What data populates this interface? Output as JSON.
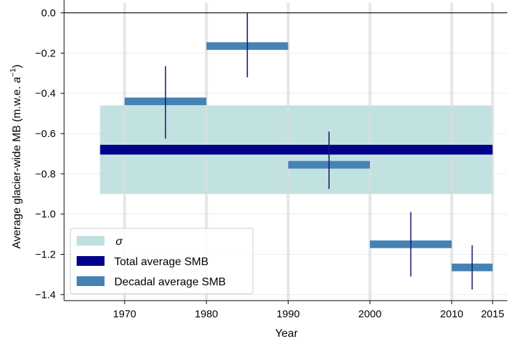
{
  "chart_data": {
    "type": "bar",
    "xlabel": "Year",
    "ylabel_main": "Average glacier-wide MB (m.w.e. ",
    "ylabel_unit_base": "a",
    "ylabel_unit_exp": "−1",
    "ylabel_close": ")",
    "xlim": [
      1962.6,
      2016.8
    ],
    "ylim": [
      -1.43,
      0.05
    ],
    "x_ticks": [
      {
        "value": 1970,
        "label": "1970"
      },
      {
        "value": 1980,
        "label": "1980"
      },
      {
        "value": 1990,
        "label": "1990"
      },
      {
        "value": 2000,
        "label": "2000"
      },
      {
        "value": 2010,
        "label": "2010"
      },
      {
        "value": 2015,
        "label": "2015"
      }
    ],
    "y_ticks": [
      {
        "value": 0.0,
        "label": "0.0"
      },
      {
        "value": -0.2,
        "label": "−0.2"
      },
      {
        "value": -0.4,
        "label": "−0.4"
      },
      {
        "value": -0.6,
        "label": "−0.6"
      },
      {
        "value": -0.8,
        "label": "−0.8"
      },
      {
        "value": -1.0,
        "label": "−1.0"
      },
      {
        "value": -1.2,
        "label": "−1.2"
      },
      {
        "value": -1.4,
        "label": "−1.4"
      }
    ],
    "vertical_lines": [
      1970,
      1980,
      1990,
      2000,
      2010,
      2015
    ],
    "zero_line": 0.0,
    "sigma_band": {
      "x_start": 1967,
      "x_end": 2015,
      "y_low": -0.9,
      "y_high": -0.46
    },
    "total_average": {
      "x_start": 1967,
      "x_end": 2015,
      "value": -0.68
    },
    "decadal": [
      {
        "start": 1970,
        "end": 1980,
        "value": -0.44,
        "err_low": -0.625,
        "err_high": -0.265
      },
      {
        "start": 1980,
        "end": 1990,
        "value": -0.165,
        "err_low": -0.32,
        "err_high": 0.0
      },
      {
        "start": 1990,
        "end": 2000,
        "value": -0.755,
        "err_low": -0.875,
        "err_high": -0.59
      },
      {
        "start": 2000,
        "end": 2010,
        "value": -1.15,
        "err_low": -1.31,
        "err_high": -0.99
      },
      {
        "start": 2010,
        "end": 2015,
        "value": -1.265,
        "err_low": -1.375,
        "err_high": -1.155
      }
    ],
    "legend": {
      "position": "lower-left",
      "entries": [
        {
          "label": "σ",
          "kind": "sigma",
          "color": "#bfe0e0"
        },
        {
          "label": "Total average SMB",
          "kind": "total",
          "color": "#00008b"
        },
        {
          "label": "Decadal average SMB",
          "kind": "decadal",
          "color": "#4682b4"
        }
      ]
    },
    "colors": {
      "sigma": "#bfe0e0",
      "total": "#00008b",
      "decadal": "#4682b4",
      "errorbar": "#191970",
      "vline": "#dcdcdc",
      "zero_line": "#000000"
    }
  }
}
